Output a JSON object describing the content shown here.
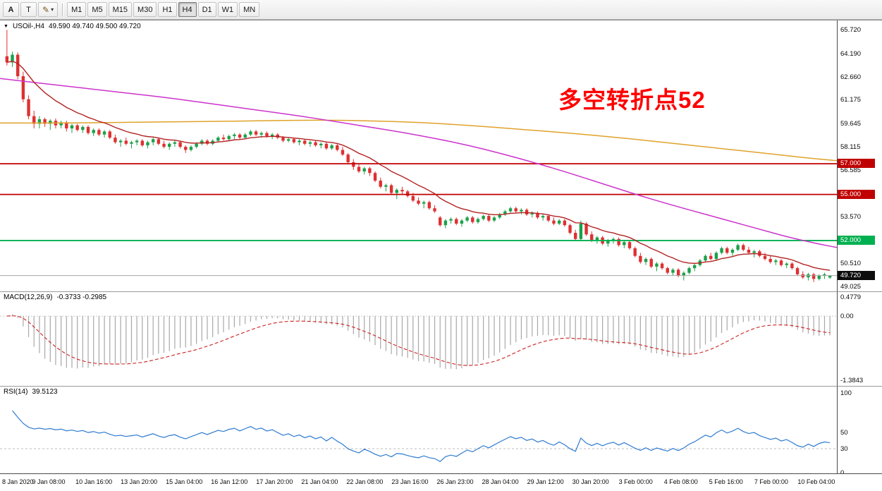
{
  "toolbar": {
    "tools": [
      {
        "label": "A"
      },
      {
        "label": "T"
      },
      {
        "icon": "✎",
        "caret": "▾"
      }
    ],
    "timeframes": [
      {
        "label": "M1"
      },
      {
        "label": "M5"
      },
      {
        "label": "M15"
      },
      {
        "label": "M30"
      },
      {
        "label": "H1"
      },
      {
        "label": "H4"
      },
      {
        "label": "D1"
      },
      {
        "label": "W1"
      },
      {
        "label": "MN"
      }
    ],
    "active_timeframe": "H4"
  },
  "chart": {
    "header": {
      "triangle": "▼",
      "symbol": "USOil-,H4",
      "ohlc": "49.590 49.740 49.500 49.720"
    },
    "annotation": {
      "text": "多空转折点52",
      "color": "#FF0000"
    }
  },
  "indicators": {
    "macd": {
      "title": "MACD(12,26,9)",
      "values": "-0.3733 -0.2985",
      "axis": [
        {
          "text": "0.4779",
          "value": 0.4779
        },
        {
          "text": "0.00",
          "value": 0
        },
        {
          "text": "-1.3843",
          "value": -1.3843
        }
      ]
    },
    "rsi": {
      "title": "RSI(14)",
      "value": "39.5123",
      "axis": [
        {
          "text": "100",
          "value": 100
        },
        {
          "text": "50",
          "value": 50
        },
        {
          "text": "30",
          "value": 30
        },
        {
          "text": "0",
          "value": 0
        }
      ]
    }
  },
  "time_axis": {
    "labels": [
      "8 Jan 2020",
      "9 Jan 08:00",
      "10 Jan 16:00",
      "13 Jan 20:00",
      "15 Jan 04:00",
      "16 Jan 12:00",
      "17 Jan 20:00",
      "21 Jan 04:00",
      "22 Jan 08:00",
      "23 Jan 16:00",
      "26 Jan 23:00",
      "28 Jan 04:00",
      "29 Jan 12:00",
      "30 Jan 20:00",
      "3 Feb 00:00",
      "4 Feb 08:00",
      "5 Feb 16:00",
      "7 Feb 00:00",
      "10 Feb 04:00"
    ]
  },
  "chart_data": {
    "type": "candlestick",
    "symbol": "USOil-",
    "timeframe": "H4",
    "title": "USOil- H4 crude oil downtrend, 8 Jan 2020 - 10 Feb 2020",
    "ylim": [
      48.69,
      66.33
    ],
    "colors": {
      "up": "#1CA04A",
      "down": "#DE3031",
      "fast_ma": "#B22222",
      "mid_ma": "#CC33CC",
      "slow_ma": "#DFA22B",
      "macd_hist": "#A8A8A8",
      "macd_signal": "#CC2222",
      "rsi_line": "#2E7BD0",
      "current_price_line": "#A6A6A6",
      "hline_red": "#C00000",
      "hline_green": "#00B050"
    },
    "ohlc": [
      [
        64.0,
        65.72,
        63.4,
        63.6
      ],
      [
        63.6,
        64.3,
        63.3,
        64.1
      ],
      [
        64.1,
        64.25,
        62.5,
        62.7
      ],
      [
        62.7,
        63.0,
        61.0,
        61.2
      ],
      [
        61.2,
        61.45,
        59.9,
        60.1
      ],
      [
        60.1,
        60.45,
        59.3,
        59.6
      ],
      [
        59.6,
        60.1,
        59.3,
        59.9
      ],
      [
        59.9,
        60.0,
        59.4,
        59.6
      ],
      [
        59.6,
        59.9,
        59.2,
        59.8
      ],
      [
        59.8,
        59.95,
        59.3,
        59.5
      ],
      [
        59.5,
        59.8,
        59.3,
        59.7
      ],
      [
        59.7,
        59.8,
        59.1,
        59.3
      ],
      [
        59.3,
        59.6,
        59.0,
        59.5
      ],
      [
        59.5,
        59.6,
        59.1,
        59.2
      ],
      [
        59.2,
        59.5,
        59.0,
        59.4
      ],
      [
        59.4,
        59.5,
        58.9,
        59.0
      ],
      [
        59.0,
        59.3,
        58.8,
        59.2
      ],
      [
        59.2,
        59.3,
        58.8,
        58.9
      ],
      [
        58.9,
        59.2,
        58.7,
        59.1
      ],
      [
        59.1,
        59.2,
        58.6,
        58.7
      ],
      [
        58.7,
        58.9,
        58.3,
        58.4
      ],
      [
        58.4,
        58.6,
        58.1,
        58.5
      ],
      [
        58.5,
        58.7,
        58.2,
        58.3
      ],
      [
        58.3,
        58.5,
        58.0,
        58.4
      ],
      [
        58.4,
        58.6,
        58.2,
        58.5
      ],
      [
        58.5,
        58.6,
        58.1,
        58.2
      ],
      [
        58.2,
        58.5,
        58.0,
        58.4
      ],
      [
        58.4,
        58.7,
        58.2,
        58.6
      ],
      [
        58.6,
        58.7,
        58.2,
        58.3
      ],
      [
        58.3,
        58.5,
        58.0,
        58.1
      ],
      [
        58.1,
        58.4,
        57.9,
        58.3
      ],
      [
        58.3,
        58.5,
        58.1,
        58.4
      ],
      [
        58.4,
        58.5,
        58.0,
        58.1
      ],
      [
        58.1,
        58.2,
        57.7,
        57.9
      ],
      [
        57.9,
        58.2,
        57.8,
        58.1
      ],
      [
        58.1,
        58.4,
        58.0,
        58.3
      ],
      [
        58.3,
        58.6,
        58.2,
        58.5
      ],
      [
        58.5,
        58.6,
        58.2,
        58.3
      ],
      [
        58.3,
        58.6,
        58.2,
        58.5
      ],
      [
        58.5,
        58.8,
        58.4,
        58.7
      ],
      [
        58.7,
        58.9,
        58.5,
        58.6
      ],
      [
        58.6,
        58.9,
        58.5,
        58.8
      ],
      [
        58.8,
        59.0,
        58.6,
        58.9
      ],
      [
        58.9,
        59.0,
        58.6,
        58.7
      ],
      [
        58.7,
        59.0,
        58.6,
        58.9
      ],
      [
        58.9,
        59.2,
        58.8,
        59.1
      ],
      [
        59.1,
        59.2,
        58.8,
        58.9
      ],
      [
        58.9,
        59.1,
        58.7,
        59.0
      ],
      [
        59.0,
        59.1,
        58.7,
        58.8
      ],
      [
        58.8,
        59.0,
        58.6,
        58.9
      ],
      [
        58.9,
        59.0,
        58.6,
        58.7
      ],
      [
        58.7,
        58.8,
        58.4,
        58.5
      ],
      [
        58.5,
        58.7,
        58.4,
        58.6
      ],
      [
        58.6,
        58.7,
        58.3,
        58.4
      ],
      [
        58.4,
        58.6,
        58.2,
        58.5
      ],
      [
        58.5,
        58.6,
        58.2,
        58.3
      ],
      [
        58.3,
        58.5,
        58.1,
        58.4
      ],
      [
        58.4,
        58.5,
        58.1,
        58.2
      ],
      [
        58.2,
        58.4,
        58.0,
        58.3
      ],
      [
        58.3,
        58.4,
        57.9,
        58.0
      ],
      [
        58.0,
        58.3,
        57.9,
        58.2
      ],
      [
        58.2,
        58.3,
        57.8,
        57.9
      ],
      [
        57.9,
        58.1,
        57.5,
        57.6
      ],
      [
        57.6,
        57.7,
        57.0,
        57.1
      ],
      [
        57.1,
        57.3,
        56.6,
        56.8
      ],
      [
        56.8,
        57.0,
        56.4,
        56.5
      ],
      [
        56.5,
        56.8,
        56.3,
        56.7
      ],
      [
        56.7,
        56.8,
        56.2,
        56.4
      ],
      [
        56.4,
        56.5,
        55.8,
        55.9
      ],
      [
        55.9,
        56.1,
        55.4,
        55.5
      ],
      [
        55.5,
        55.7,
        55.2,
        55.6
      ],
      [
        55.6,
        55.7,
        55.0,
        55.1
      ],
      [
        55.1,
        55.4,
        54.7,
        55.3
      ],
      [
        55.3,
        55.5,
        55.0,
        55.2
      ],
      [
        55.2,
        55.3,
        54.8,
        54.9
      ],
      [
        54.9,
        55.1,
        54.5,
        54.6
      ],
      [
        54.6,
        54.8,
        54.3,
        54.4
      ],
      [
        54.4,
        54.6,
        54.1,
        54.5
      ],
      [
        54.5,
        54.6,
        54.0,
        54.1
      ],
      [
        54.1,
        54.3,
        53.8,
        53.9
      ],
      [
        53.5,
        53.6,
        52.9,
        53.0
      ],
      [
        53.0,
        53.4,
        52.8,
        53.3
      ],
      [
        53.3,
        53.5,
        53.1,
        53.4
      ],
      [
        53.4,
        53.5,
        53.0,
        53.1
      ],
      [
        53.1,
        53.4,
        52.9,
        53.3
      ],
      [
        53.3,
        53.6,
        53.2,
        53.5
      ],
      [
        53.5,
        53.6,
        53.1,
        53.2
      ],
      [
        53.2,
        53.5,
        53.1,
        53.4
      ],
      [
        53.4,
        53.7,
        53.3,
        53.6
      ],
      [
        53.6,
        53.7,
        53.2,
        53.3
      ],
      [
        53.3,
        53.6,
        53.2,
        53.5
      ],
      [
        53.5,
        53.8,
        53.4,
        53.7
      ],
      [
        53.7,
        54.0,
        53.6,
        53.9
      ],
      [
        53.9,
        54.2,
        53.8,
        54.1
      ],
      [
        54.1,
        54.2,
        53.8,
        53.9
      ],
      [
        53.9,
        54.1,
        53.7,
        54.0
      ],
      [
        54.0,
        54.1,
        53.6,
        53.7
      ],
      [
        53.7,
        53.9,
        53.5,
        53.8
      ],
      [
        53.8,
        53.9,
        53.4,
        53.5
      ],
      [
        53.5,
        53.7,
        53.3,
        53.6
      ],
      [
        53.6,
        53.7,
        53.2,
        53.3
      ],
      [
        53.3,
        53.5,
        53.0,
        53.1
      ],
      [
        53.1,
        53.4,
        53.0,
        53.3
      ],
      [
        53.3,
        53.4,
        52.9,
        53.0
      ],
      [
        53.0,
        53.1,
        52.4,
        52.5
      ],
      [
        52.5,
        52.7,
        52.0,
        52.1
      ],
      [
        52.1,
        53.3,
        52.0,
        53.1
      ],
      [
        53.1,
        53.2,
        52.3,
        52.4
      ],
      [
        52.4,
        52.6,
        51.9,
        52.0
      ],
      [
        52.0,
        52.3,
        51.8,
        52.2
      ],
      [
        52.2,
        52.3,
        51.7,
        51.8
      ],
      [
        51.8,
        52.1,
        51.6,
        52.0
      ],
      [
        52.0,
        52.2,
        51.8,
        52.1
      ],
      [
        52.1,
        52.2,
        51.6,
        51.7
      ],
      [
        51.7,
        52.0,
        51.5,
        51.9
      ],
      [
        51.9,
        52.0,
        51.4,
        51.5
      ],
      [
        51.5,
        51.6,
        50.9,
        51.0
      ],
      [
        51.0,
        51.2,
        50.5,
        50.6
      ],
      [
        50.6,
        50.9,
        50.4,
        50.8
      ],
      [
        50.8,
        50.9,
        50.2,
        50.3
      ],
      [
        50.3,
        50.6,
        50.0,
        50.5
      ],
      [
        50.5,
        50.6,
        50.1,
        50.2
      ],
      [
        50.2,
        50.3,
        49.8,
        49.9
      ],
      [
        49.9,
        50.2,
        49.7,
        50.1
      ],
      [
        50.1,
        50.2,
        49.6,
        49.7
      ],
      [
        49.7,
        50.0,
        49.4,
        49.9
      ],
      [
        49.9,
        50.3,
        49.8,
        50.2
      ],
      [
        50.2,
        50.5,
        50.0,
        50.4
      ],
      [
        50.4,
        50.8,
        50.3,
        50.7
      ],
      [
        50.7,
        51.1,
        50.6,
        51.0
      ],
      [
        51.0,
        51.2,
        50.7,
        50.8
      ],
      [
        50.8,
        51.3,
        50.7,
        51.2
      ],
      [
        51.2,
        51.6,
        51.1,
        51.5
      ],
      [
        51.5,
        51.6,
        51.1,
        51.2
      ],
      [
        51.2,
        51.5,
        51.0,
        51.4
      ],
      [
        51.4,
        51.8,
        51.3,
        51.7
      ],
      [
        51.7,
        51.8,
        51.3,
        51.4
      ],
      [
        51.4,
        51.6,
        51.1,
        51.2
      ],
      [
        51.2,
        51.4,
        50.9,
        51.3
      ],
      [
        51.3,
        51.4,
        50.9,
        51.0
      ],
      [
        51.0,
        51.2,
        50.7,
        50.8
      ],
      [
        50.8,
        51.0,
        50.5,
        50.6
      ],
      [
        50.6,
        50.8,
        50.4,
        50.7
      ],
      [
        50.7,
        50.8,
        50.3,
        50.4
      ],
      [
        50.4,
        50.6,
        50.2,
        50.5
      ],
      [
        50.5,
        50.6,
        50.1,
        50.2
      ],
      [
        50.2,
        50.3,
        49.7,
        49.8
      ],
      [
        49.8,
        50.0,
        49.5,
        49.6
      ],
      [
        49.6,
        49.9,
        49.4,
        49.8
      ],
      [
        49.8,
        49.9,
        49.3,
        49.5
      ],
      [
        49.5,
        49.8,
        49.4,
        49.7
      ],
      [
        49.7,
        49.9,
        49.5,
        49.8
      ],
      [
        49.59,
        49.74,
        49.5,
        49.72
      ]
    ],
    "hlines": [
      {
        "price": 57.0,
        "label": "57.000",
        "color_key": "hline_red"
      },
      {
        "price": 55.0,
        "label": "55.000",
        "color_key": "hline_red"
      },
      {
        "price": 52.0,
        "label": "52.000",
        "color_key": "hline_green"
      }
    ],
    "current_price": {
      "price": 49.72,
      "label": "49.720"
    },
    "price_axis_labels": [
      {
        "text": "65.720",
        "price": 65.72
      },
      {
        "text": "64.190",
        "price": 64.19
      },
      {
        "text": "62.660",
        "price": 62.66
      },
      {
        "text": "61.175",
        "price": 61.175
      },
      {
        "text": "59.645",
        "price": 59.645
      },
      {
        "text": "58.115",
        "price": 58.115
      },
      {
        "text": "56.585",
        "price": 56.585
      },
      {
        "text": "53.570",
        "price": 53.57
      },
      {
        "text": "50.510",
        "price": 50.51
      },
      {
        "text": "49.025",
        "price": 49.025
      }
    ],
    "fast_ma": {
      "period": 13
    },
    "ma_overlays": [
      {
        "name": "slow-ma-orange",
        "color_key": "slow_ma",
        "points": [
          [
            0,
            59.65
          ],
          [
            8,
            59.65
          ],
          [
            16,
            59.7
          ],
          [
            24,
            59.75
          ],
          [
            32,
            59.8
          ],
          [
            38,
            59.85
          ],
          [
            44,
            59.8
          ],
          [
            50,
            59.7
          ],
          [
            56,
            59.5
          ],
          [
            62,
            59.25
          ],
          [
            68,
            59.0
          ],
          [
            74,
            58.7
          ],
          [
            80,
            58.35
          ],
          [
            86,
            58.0
          ],
          [
            92,
            57.65
          ],
          [
            96,
            57.4
          ],
          [
            100,
            57.2
          ]
        ]
      },
      {
        "name": "mid-ma-magenta",
        "color_key": "mid_ma",
        "points": [
          [
            0,
            62.55
          ],
          [
            4,
            62.3
          ],
          [
            8,
            62.05
          ],
          [
            12,
            61.8
          ],
          [
            16,
            61.55
          ],
          [
            20,
            61.3
          ],
          [
            24,
            61.0
          ],
          [
            28,
            60.7
          ],
          [
            32,
            60.4
          ],
          [
            36,
            60.1
          ],
          [
            40,
            59.75
          ],
          [
            44,
            59.4
          ],
          [
            48,
            59.05
          ],
          [
            52,
            58.65
          ],
          [
            56,
            58.2
          ],
          [
            60,
            57.65
          ],
          [
            64,
            57.05
          ],
          [
            68,
            56.4
          ],
          [
            72,
            55.7
          ],
          [
            76,
            55.0
          ],
          [
            80,
            54.35
          ],
          [
            84,
            53.75
          ],
          [
            88,
            53.15
          ],
          [
            91,
            52.7
          ],
          [
            94,
            52.25
          ],
          [
            96,
            52.0
          ],
          [
            98,
            51.75
          ],
          [
            100,
            51.55
          ]
        ]
      }
    ],
    "macd": {
      "params": [
        12,
        26,
        9
      ],
      "ylim": [
        -1.51,
        0.52
      ]
    },
    "rsi": {
      "period": 14,
      "ylim": [
        -1,
        108
      ],
      "levels": [
        30
      ]
    }
  }
}
